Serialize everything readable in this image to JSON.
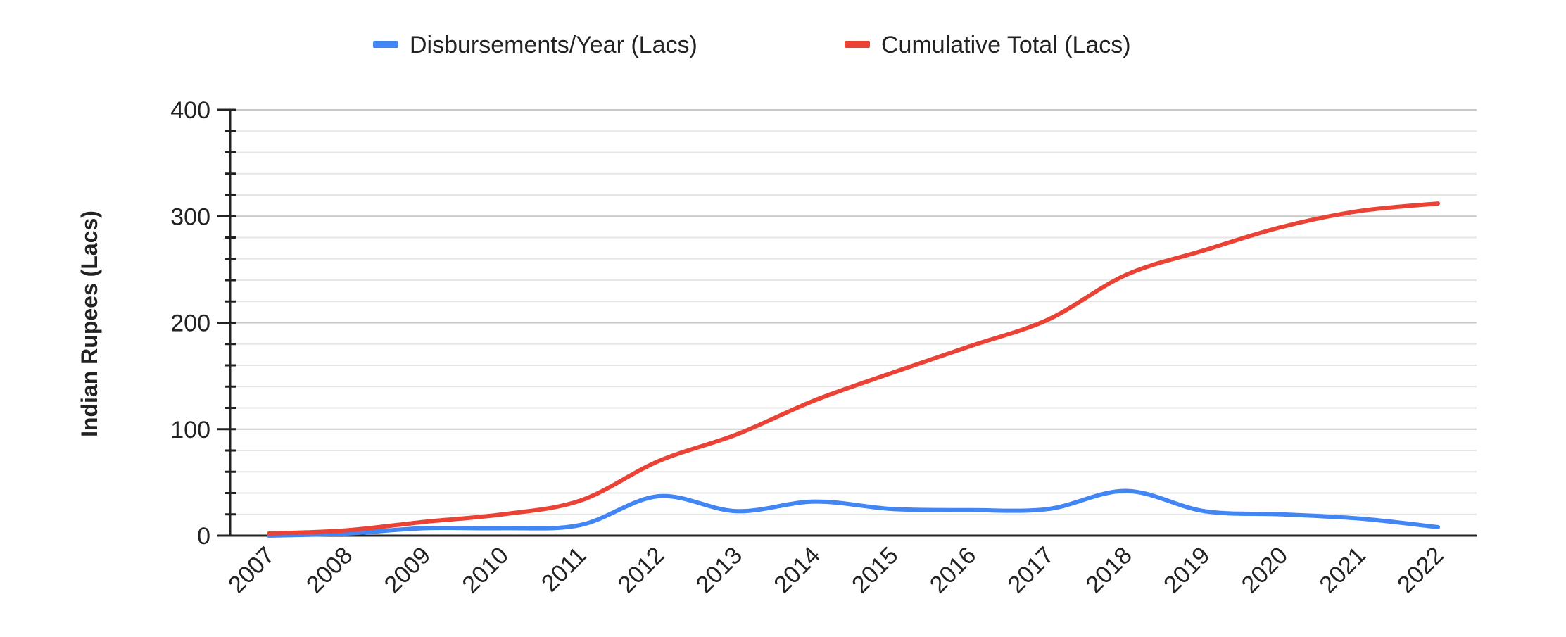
{
  "chart_data": {
    "type": "line",
    "smooth": true,
    "title": "",
    "xlabel": "",
    "ylabel": "Indian Rupees (Lacs)",
    "ylim": [
      0,
      400
    ],
    "yticks": [
      0,
      100,
      200,
      300,
      400
    ],
    "minor_grid_step": 20,
    "grid": true,
    "legend_position": "top",
    "categories": [
      "2007",
      "2008",
      "2009",
      "2010",
      "2011",
      "2012",
      "2013",
      "2014",
      "2015",
      "2016",
      "2017",
      "2018",
      "2019",
      "2020",
      "2021",
      "2022"
    ],
    "series": [
      {
        "name": "Disbursements/Year (Lacs)",
        "color": "#4285f4",
        "values": [
          0,
          2,
          7,
          7,
          10,
          37,
          23,
          32,
          25,
          24,
          25,
          42,
          23,
          20,
          16,
          8
        ]
      },
      {
        "name": "Cumulative Total (Lacs)",
        "color": "#ea4335",
        "values": [
          2,
          5,
          13,
          20,
          33,
          70,
          95,
          127,
          153,
          178,
          203,
          245,
          268,
          290,
          305,
          312
        ]
      }
    ]
  }
}
